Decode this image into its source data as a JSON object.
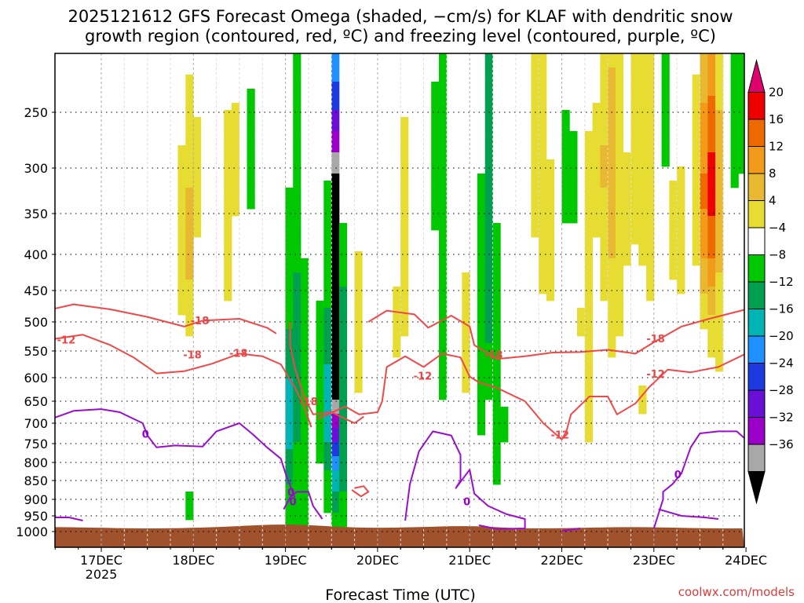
{
  "chart_data": {
    "type": "heatmap",
    "title_lines": [
      "2025121612 GFS Forecast Omega (shaded, −cm/s) for KLAF with dendritic snow",
      "growth region (contoured, red, ºC) and freezing level (contoured, purple, ºC)"
    ],
    "xlabel": "Forecast Time (UTC)",
    "credit": "coolwx.com/models",
    "x_day_index_range": [
      -0.54,
      7.0
    ],
    "x_ticks": [
      {
        "day": 0,
        "label": "17DEC",
        "year": "2025"
      },
      {
        "day": 1,
        "label": "18DEC"
      },
      {
        "day": 2,
        "label": "19DEC"
      },
      {
        "day": 3,
        "label": "20DEC"
      },
      {
        "day": 4,
        "label": "21DEC"
      },
      {
        "day": 5,
        "label": "22DEC"
      },
      {
        "day": 6,
        "label": "23DEC"
      },
      {
        "day": 7,
        "label": "24DEC"
      }
    ],
    "y_pressure_range_hpa": [
      200,
      1025
    ],
    "y_ticks": [
      250,
      300,
      350,
      400,
      450,
      500,
      550,
      600,
      650,
      700,
      750,
      800,
      850,
      900,
      950,
      1000
    ],
    "colorbar": {
      "labels": [
        "20",
        "16",
        "12",
        "8",
        "4",
        "−4",
        "−8",
        "−12",
        "−16",
        "−20",
        "−24",
        "−28",
        "−32",
        "−36"
      ],
      "colors": [
        "#ee0000",
        "#ee6a00",
        "#f29a1a",
        "#e8b830",
        "#e7dc32",
        "#ffffff",
        "#00c800",
        "#00a050",
        "#00b4b4",
        "#1e90ff",
        "#1c3ae0",
        "#6a0fd6",
        "#9a00c8",
        "#a8a8a8"
      ],
      "top_cap": "#e0006e",
      "bottom_cap": "#000000"
    },
    "contour_labels": [
      {
        "text": "-12",
        "day": -0.38,
        "p": 532,
        "color": "#ee4444"
      },
      {
        "text": "-18",
        "day": 1.07,
        "p": 499,
        "color": "#ee4444"
      },
      {
        "text": "-18",
        "day": 0.99,
        "p": 558,
        "color": "#ee4444"
      },
      {
        "text": "-18",
        "day": 1.49,
        "p": 555,
        "color": "#ee4444"
      },
      {
        "text": "-18",
        "day": 2.25,
        "p": 652,
        "color": "#ee4444"
      },
      {
        "text": "-12",
        "day": 3.49,
        "p": 598,
        "color": "#ee4444"
      },
      {
        "text": "-18",
        "day": 4.26,
        "p": 558,
        "color": "#ee4444"
      },
      {
        "text": "-12",
        "day": 4.98,
        "p": 730,
        "color": "#ee4444"
      },
      {
        "text": "-18",
        "day": 6.02,
        "p": 530,
        "color": "#ee4444"
      },
      {
        "text": "-12",
        "day": 6.02,
        "p": 594,
        "color": "#ee4444"
      },
      {
        "text": "0",
        "day": 0.48,
        "p": 728,
        "color": "#9900cc"
      },
      {
        "text": "0",
        "day": 2.06,
        "p": 882,
        "color": "#9900cc"
      },
      {
        "text": "0",
        "day": 2.08,
        "p": 908,
        "color": "#9900cc"
      },
      {
        "text": "0",
        "day": 3.97,
        "p": 908,
        "color": "#9900cc"
      },
      {
        "text": "0",
        "day": 6.26,
        "p": 835,
        "color": "#9900cc"
      }
    ]
  }
}
